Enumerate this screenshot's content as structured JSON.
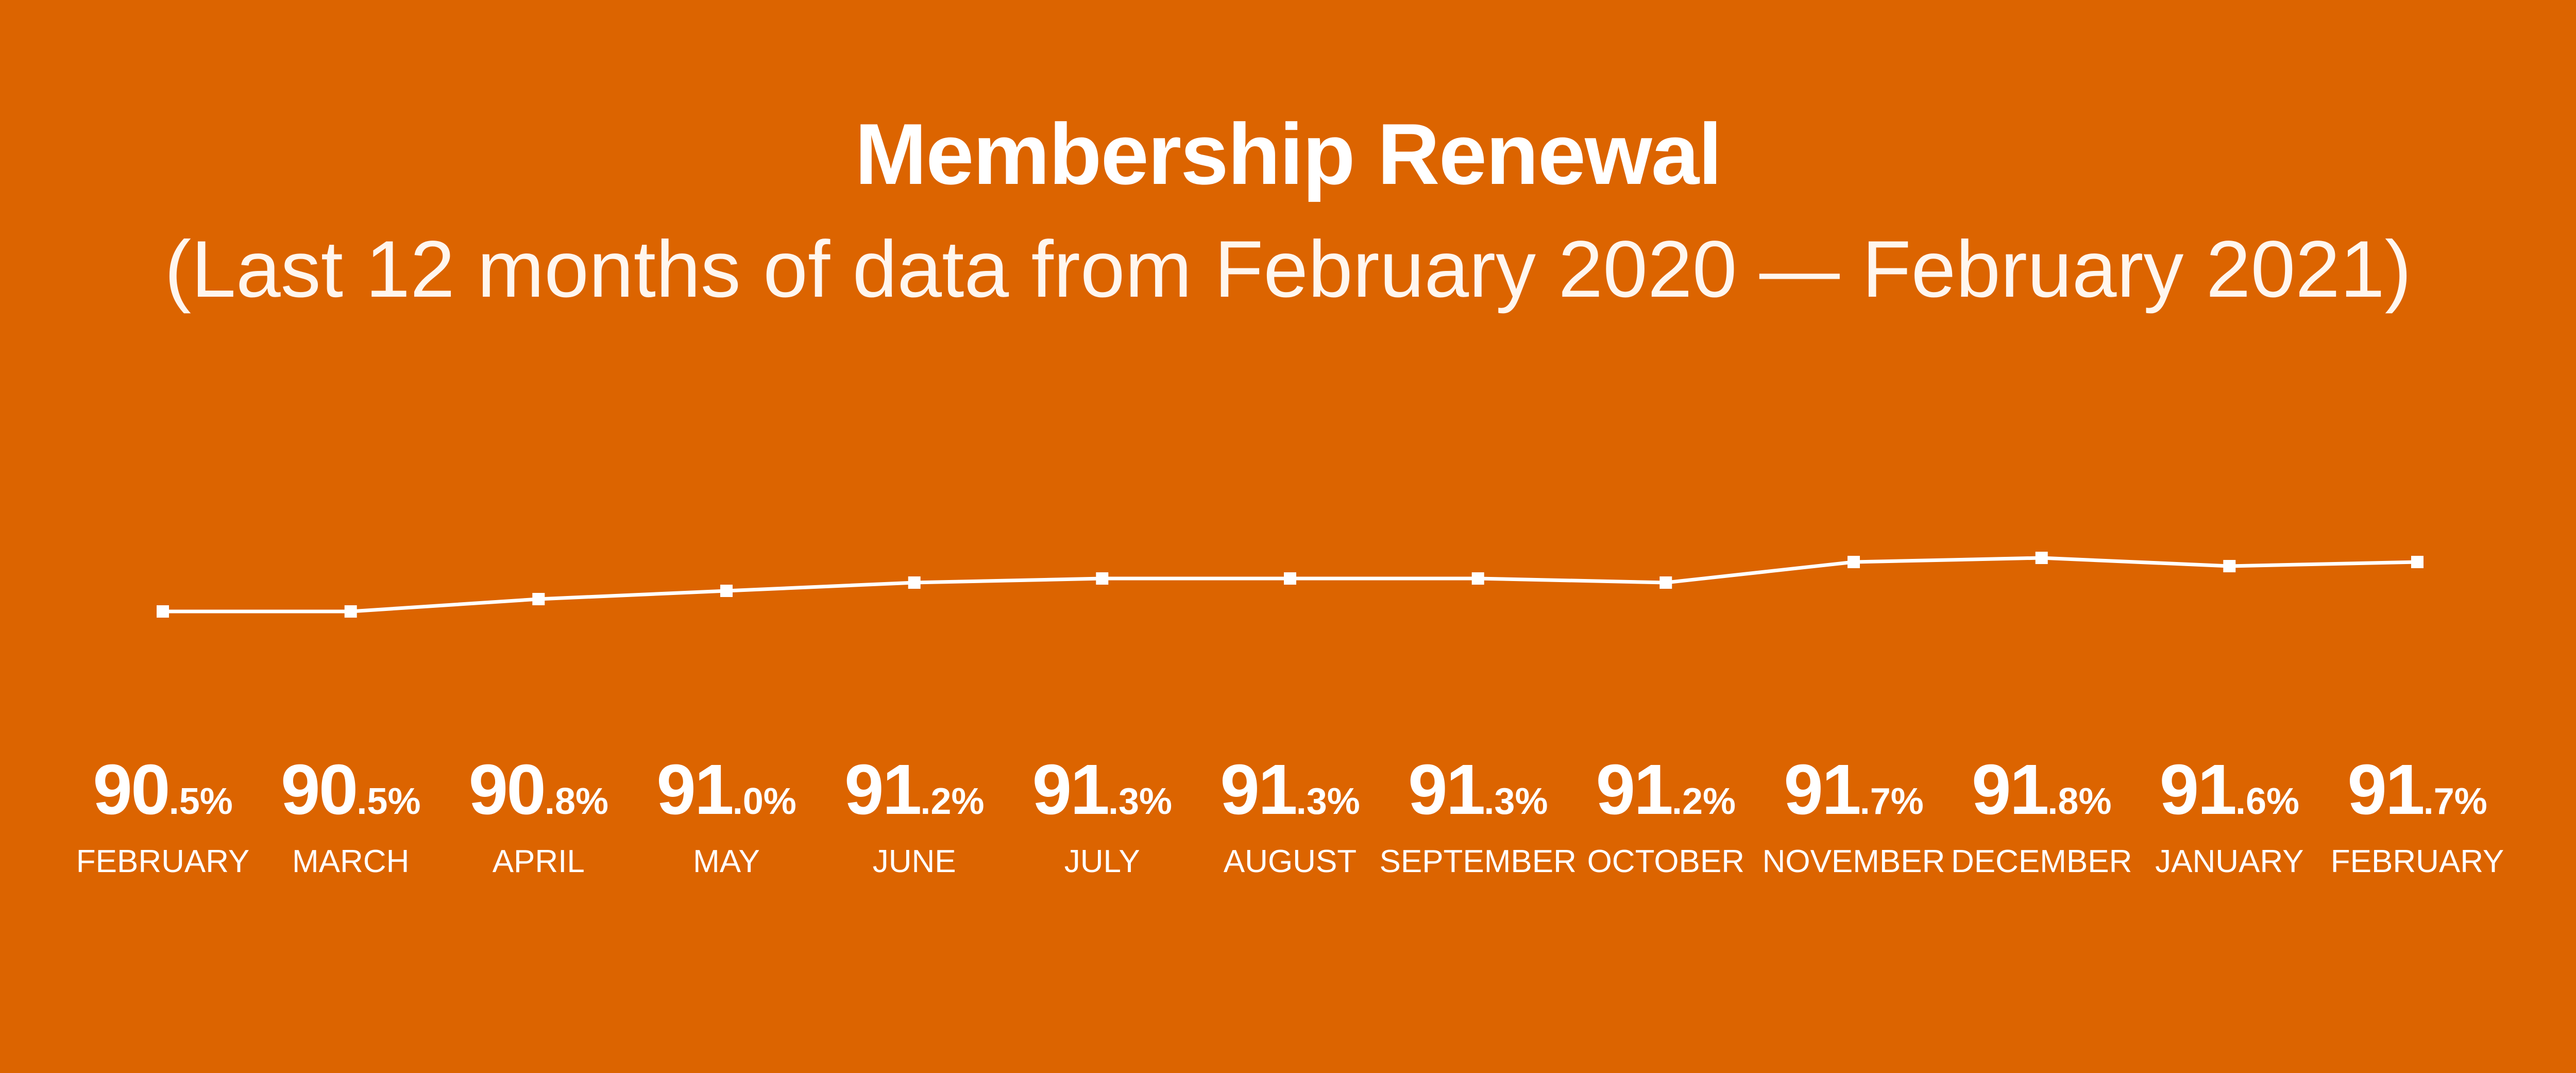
{
  "chart_data": {
    "type": "line",
    "title": "Membership Renewal",
    "subtitle": "(Last 12 months of data from February 2020 — February 2021)",
    "categories": [
      "FEBRUARY",
      "MARCH",
      "APRIL",
      "MAY",
      "JUNE",
      "JULY",
      "AUGUST",
      "SEPTEMBER",
      "OCTOBER",
      "NOVEMBER",
      "DECEMBER",
      "JANUARY",
      "FEBRUARY"
    ],
    "values": [
      90.5,
      90.5,
      90.8,
      91.0,
      91.2,
      91.3,
      91.3,
      91.3,
      91.2,
      91.7,
      91.8,
      91.6,
      91.7
    ],
    "value_labels": [
      {
        "int": "90",
        "dec": ".5%"
      },
      {
        "int": "90",
        "dec": ".5%"
      },
      {
        "int": "90",
        "dec": ".8%"
      },
      {
        "int": "91",
        "dec": ".0%"
      },
      {
        "int": "91",
        "dec": ".2%"
      },
      {
        "int": "91",
        "dec": ".3%"
      },
      {
        "int": "91",
        "dec": ".3%"
      },
      {
        "int": "91",
        "dec": ".3%"
      },
      {
        "int": "91",
        "dec": ".2%"
      },
      {
        "int": "91",
        "dec": ".7%"
      },
      {
        "int": "91",
        "dec": ".8%"
      },
      {
        "int": "91",
        "dec": ".6%"
      },
      {
        "int": "91",
        "dec": ".7%"
      }
    ],
    "unit": "%",
    "grid": false,
    "axes_visible": false,
    "colors": {
      "background": "#DC6400",
      "line": "#FFFFFF",
      "text": "#FFFFFF"
    }
  }
}
